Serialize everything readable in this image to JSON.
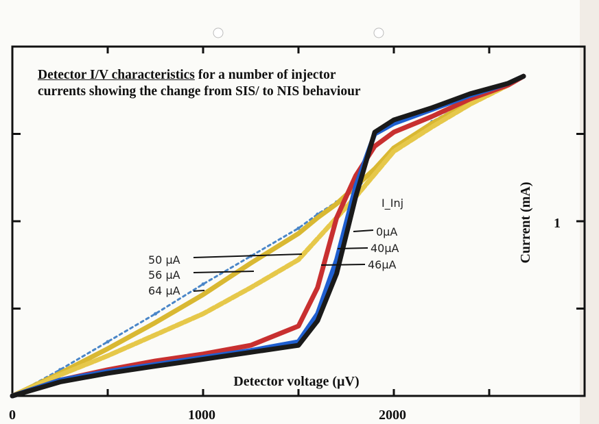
{
  "chart_data": {
    "type": "line",
    "title_line1_underlined": "Detector I/V characteristics",
    "title_line1_rest": " for a number of injector",
    "title_line2": "currents showing the change from SIS/ to NIS behaviour",
    "xlabel": "Detector voltage (µV)",
    "ylabel": "Current (mA)",
    "xlim": [
      0,
      3000
    ],
    "ylim": [
      0,
      2.0
    ],
    "x_ticks": [
      0,
      1000,
      2000
    ],
    "x_tick_labels": [
      "0",
      "1000",
      "2000"
    ],
    "y_ticks_labeled": [
      1
    ],
    "y_tick_labels": [
      "1"
    ],
    "legend_title": "I_Inj",
    "x": [
      0,
      250,
      500,
      750,
      1000,
      1250,
      1500,
      1600,
      1700,
      1800,
      1900,
      2000,
      2200,
      2400,
      2600,
      2680
    ],
    "series": [
      {
        "name": "0µA",
        "label": "0µA",
        "color": "#1a1a1a",
        "style": "solid",
        "values": [
          0,
          0.08,
          0.13,
          0.17,
          0.21,
          0.25,
          0.29,
          0.43,
          0.7,
          1.14,
          1.51,
          1.58,
          1.65,
          1.73,
          1.79,
          1.83
        ]
      },
      {
        "name": "40µA",
        "label": "40µA",
        "color": "#1f5fd0",
        "style": "solid",
        "values": [
          0,
          0.09,
          0.14,
          0.18,
          0.22,
          0.26,
          0.31,
          0.47,
          0.78,
          1.2,
          1.5,
          1.56,
          1.64,
          1.72,
          1.79,
          1.83
        ]
      },
      {
        "name": "46µA",
        "label": "46µA",
        "color": "#c83030",
        "style": "solid",
        "values": [
          0,
          0.09,
          0.15,
          0.2,
          0.24,
          0.29,
          0.4,
          0.62,
          1.02,
          1.26,
          1.43,
          1.51,
          1.6,
          1.7,
          1.78,
          1.83
        ]
      },
      {
        "name": "50µA",
        "label": "50 µA",
        "color": "#e6c84a",
        "style": "dashed",
        "values": [
          0,
          0.12,
          0.23,
          0.35,
          0.47,
          0.62,
          0.78,
          0.9,
          1.02,
          1.14,
          1.27,
          1.4,
          1.54,
          1.67,
          1.78,
          1.83
        ]
      },
      {
        "name": "56µA",
        "label": "56 µA",
        "color": "#d9b832",
        "style": "solid",
        "values": [
          0,
          0.13,
          0.27,
          0.42,
          0.58,
          0.76,
          0.93,
          1.02,
          1.1,
          1.2,
          1.3,
          1.42,
          1.56,
          1.68,
          1.79,
          1.83
        ]
      },
      {
        "name": "64µA",
        "label": "64 µA",
        "color": "#4a86c8",
        "style": "dotted",
        "values": [
          0,
          0.15,
          0.31,
          0.47,
          0.64,
          0.8,
          0.96,
          1.04,
          1.11,
          1.18,
          1.3,
          1.42,
          1.57,
          1.69,
          1.79,
          1.83
        ]
      }
    ]
  }
}
